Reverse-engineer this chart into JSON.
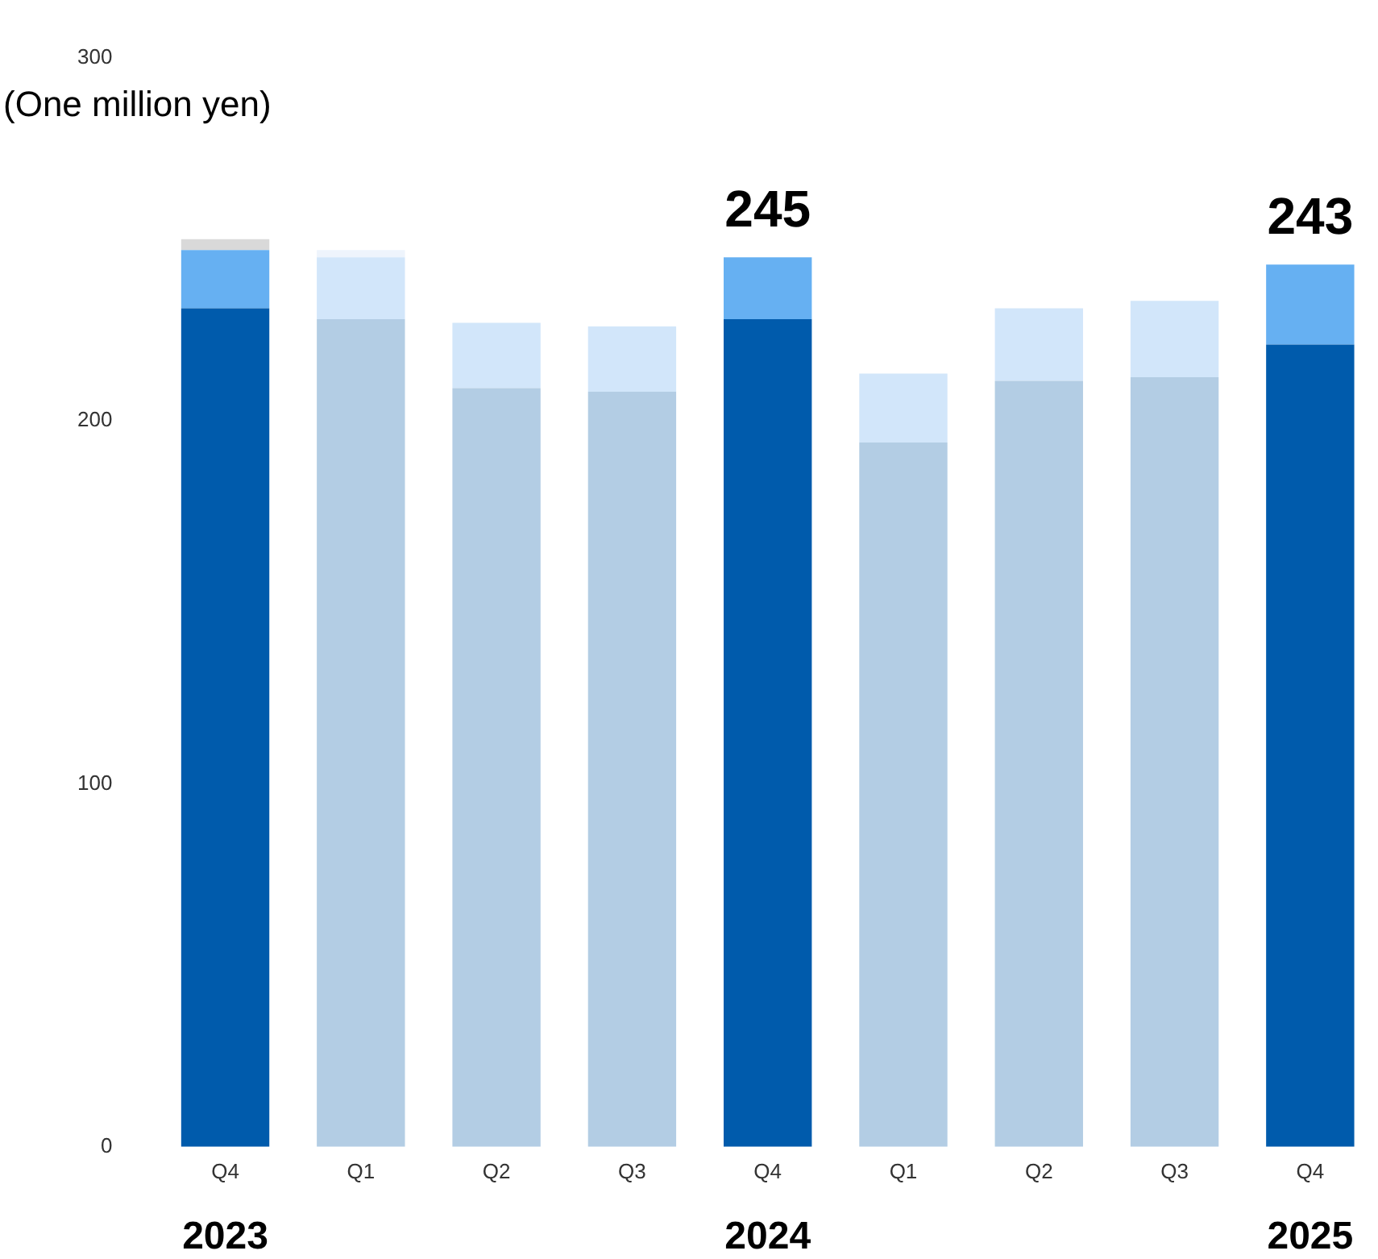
{
  "chart_data": {
    "type": "bar",
    "stacked": true,
    "ylabel": "(One million yen)",
    "categories": [
      "Q4",
      "Q1",
      "Q2",
      "Q3",
      "Q4",
      "Q1",
      "Q2",
      "Q3",
      "Q4"
    ],
    "series": [
      {
        "colors": [
          "#005bac",
          "#b3cde4",
          "#b3cde4",
          "#b3cde4",
          "#005bac",
          "#b3cde4",
          "#b3cde4",
          "#b3cde4",
          "#005bac"
        ],
        "values": [
          231,
          228,
          209,
          208,
          228,
          194,
          211,
          212,
          221
        ]
      },
      {
        "colors": [
          "#66b0f2",
          "#d2e6fa",
          "#d2e6fa",
          "#d2e6fa",
          "#66b0f2",
          "#d2e6fa",
          "#d2e6fa",
          "#d2e6fa",
          "#66b0f2"
        ],
        "values": [
          16,
          17,
          18,
          18,
          17,
          19,
          20,
          21,
          22
        ]
      },
      {
        "colors": [
          "#d9d9d9",
          "#eef4fc",
          null,
          null,
          null,
          null,
          null,
          null,
          null
        ],
        "values": [
          3,
          2,
          null,
          null,
          null,
          null,
          null,
          null,
          null
        ]
      }
    ],
    "totals": [
      null,
      null,
      null,
      null,
      "245",
      null,
      null,
      null,
      "243"
    ],
    "annotations": [
      "2023",
      "2024",
      "2025"
    ],
    "ylim": [
      0,
      300
    ],
    "yticks": [
      0,
      100,
      200,
      300
    ],
    "grid": false,
    "legend": false
  }
}
